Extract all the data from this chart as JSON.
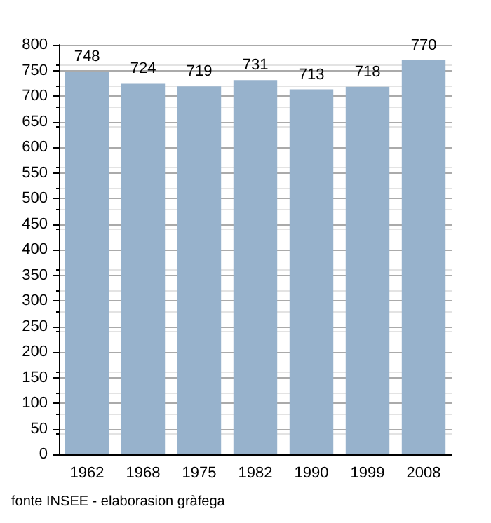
{
  "chart_data": {
    "type": "bar",
    "categories": [
      "1962",
      "1968",
      "1975",
      "1982",
      "1990",
      "1999",
      "2008"
    ],
    "values": [
      748,
      724,
      719,
      731,
      713,
      718,
      770
    ],
    "color": "#97b2cc",
    "ylim": [
      0,
      800
    ],
    "yticks": [
      0,
      50,
      100,
      150,
      200,
      250,
      300,
      350,
      400,
      450,
      500,
      550,
      600,
      650,
      700,
      750,
      800
    ],
    "grid": "y",
    "data_labels": true,
    "annotations": [
      "fonte INSEE - elaborasion gràfega"
    ]
  }
}
